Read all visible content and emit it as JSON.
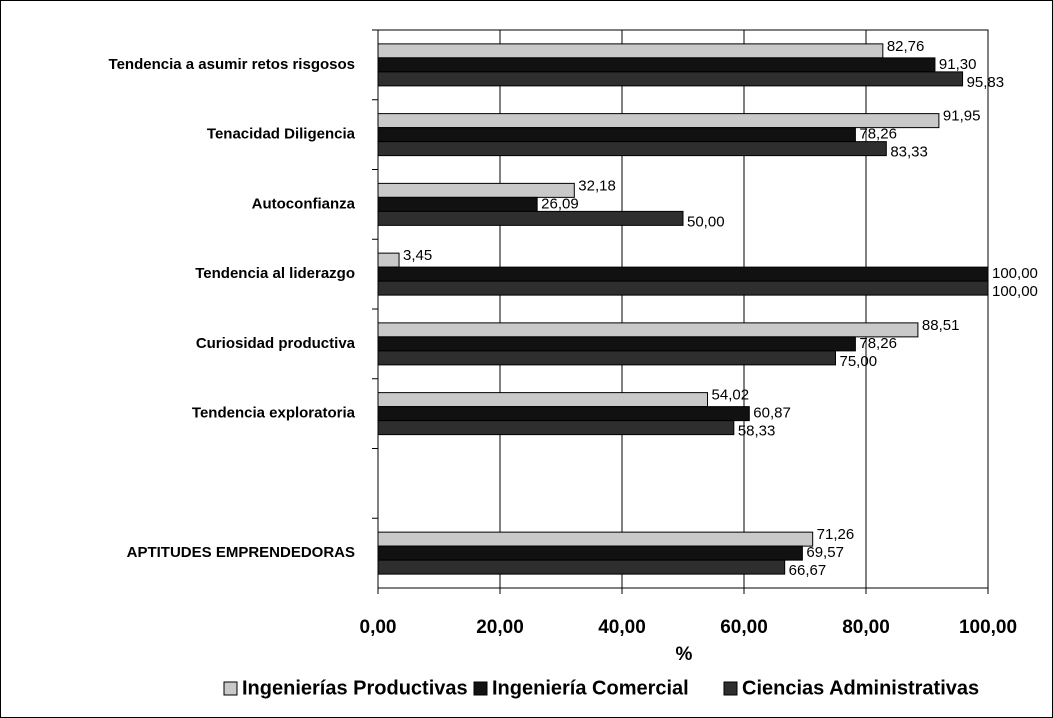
{
  "chart_data": {
    "type": "bar",
    "orientation": "horizontal",
    "categories": [
      "Tendencia a asumir retos risgosos",
      "Tenacidad Diligencia",
      "Autoconfianza",
      "Tendencia al liderazgo",
      "Curiosidad productiva",
      "Tendencia exploratoria",
      null,
      "APTITUDES EMPRENDEDORAS"
    ],
    "series": [
      {
        "name": "Ingenierías Productivas",
        "color": "#c9c9c9",
        "values": [
          82.76,
          91.95,
          32.18,
          3.45,
          88.51,
          54.02,
          null,
          71.26
        ],
        "value_labels": [
          "82,76",
          "91,95",
          "32,18",
          "3,45",
          "88,51",
          "54,02",
          null,
          "71,26"
        ]
      },
      {
        "name": "Ingeniería Comercial",
        "color": "#111111",
        "values": [
          91.3,
          78.26,
          26.09,
          100.0,
          78.26,
          60.87,
          null,
          69.57
        ],
        "value_labels": [
          "91,30",
          "78,26",
          "26,09",
          "100,00",
          "78,26",
          "60,87",
          null,
          "69,57"
        ]
      },
      {
        "name": "Ciencias Administrativas",
        "color": "#2e2e2e",
        "values": [
          95.83,
          83.33,
          50.0,
          100.0,
          75.0,
          58.33,
          null,
          66.67
        ],
        "value_labels": [
          "95,83",
          "83,33",
          "50,00",
          "100,00",
          "75,00",
          "58,33",
          null,
          "66,67"
        ]
      }
    ],
    "x_label": "%",
    "xlim": [
      0,
      100
    ],
    "xticks": [
      {
        "value": 0,
        "label": "0,00"
      },
      {
        "value": 20,
        "label": "20,00"
      },
      {
        "value": 40,
        "label": "40,00"
      },
      {
        "value": 60,
        "label": "60,00"
      },
      {
        "value": 80,
        "label": "80,00"
      },
      {
        "value": 100,
        "label": "100,00"
      }
    ],
    "grid": true,
    "legend": "bottom"
  }
}
